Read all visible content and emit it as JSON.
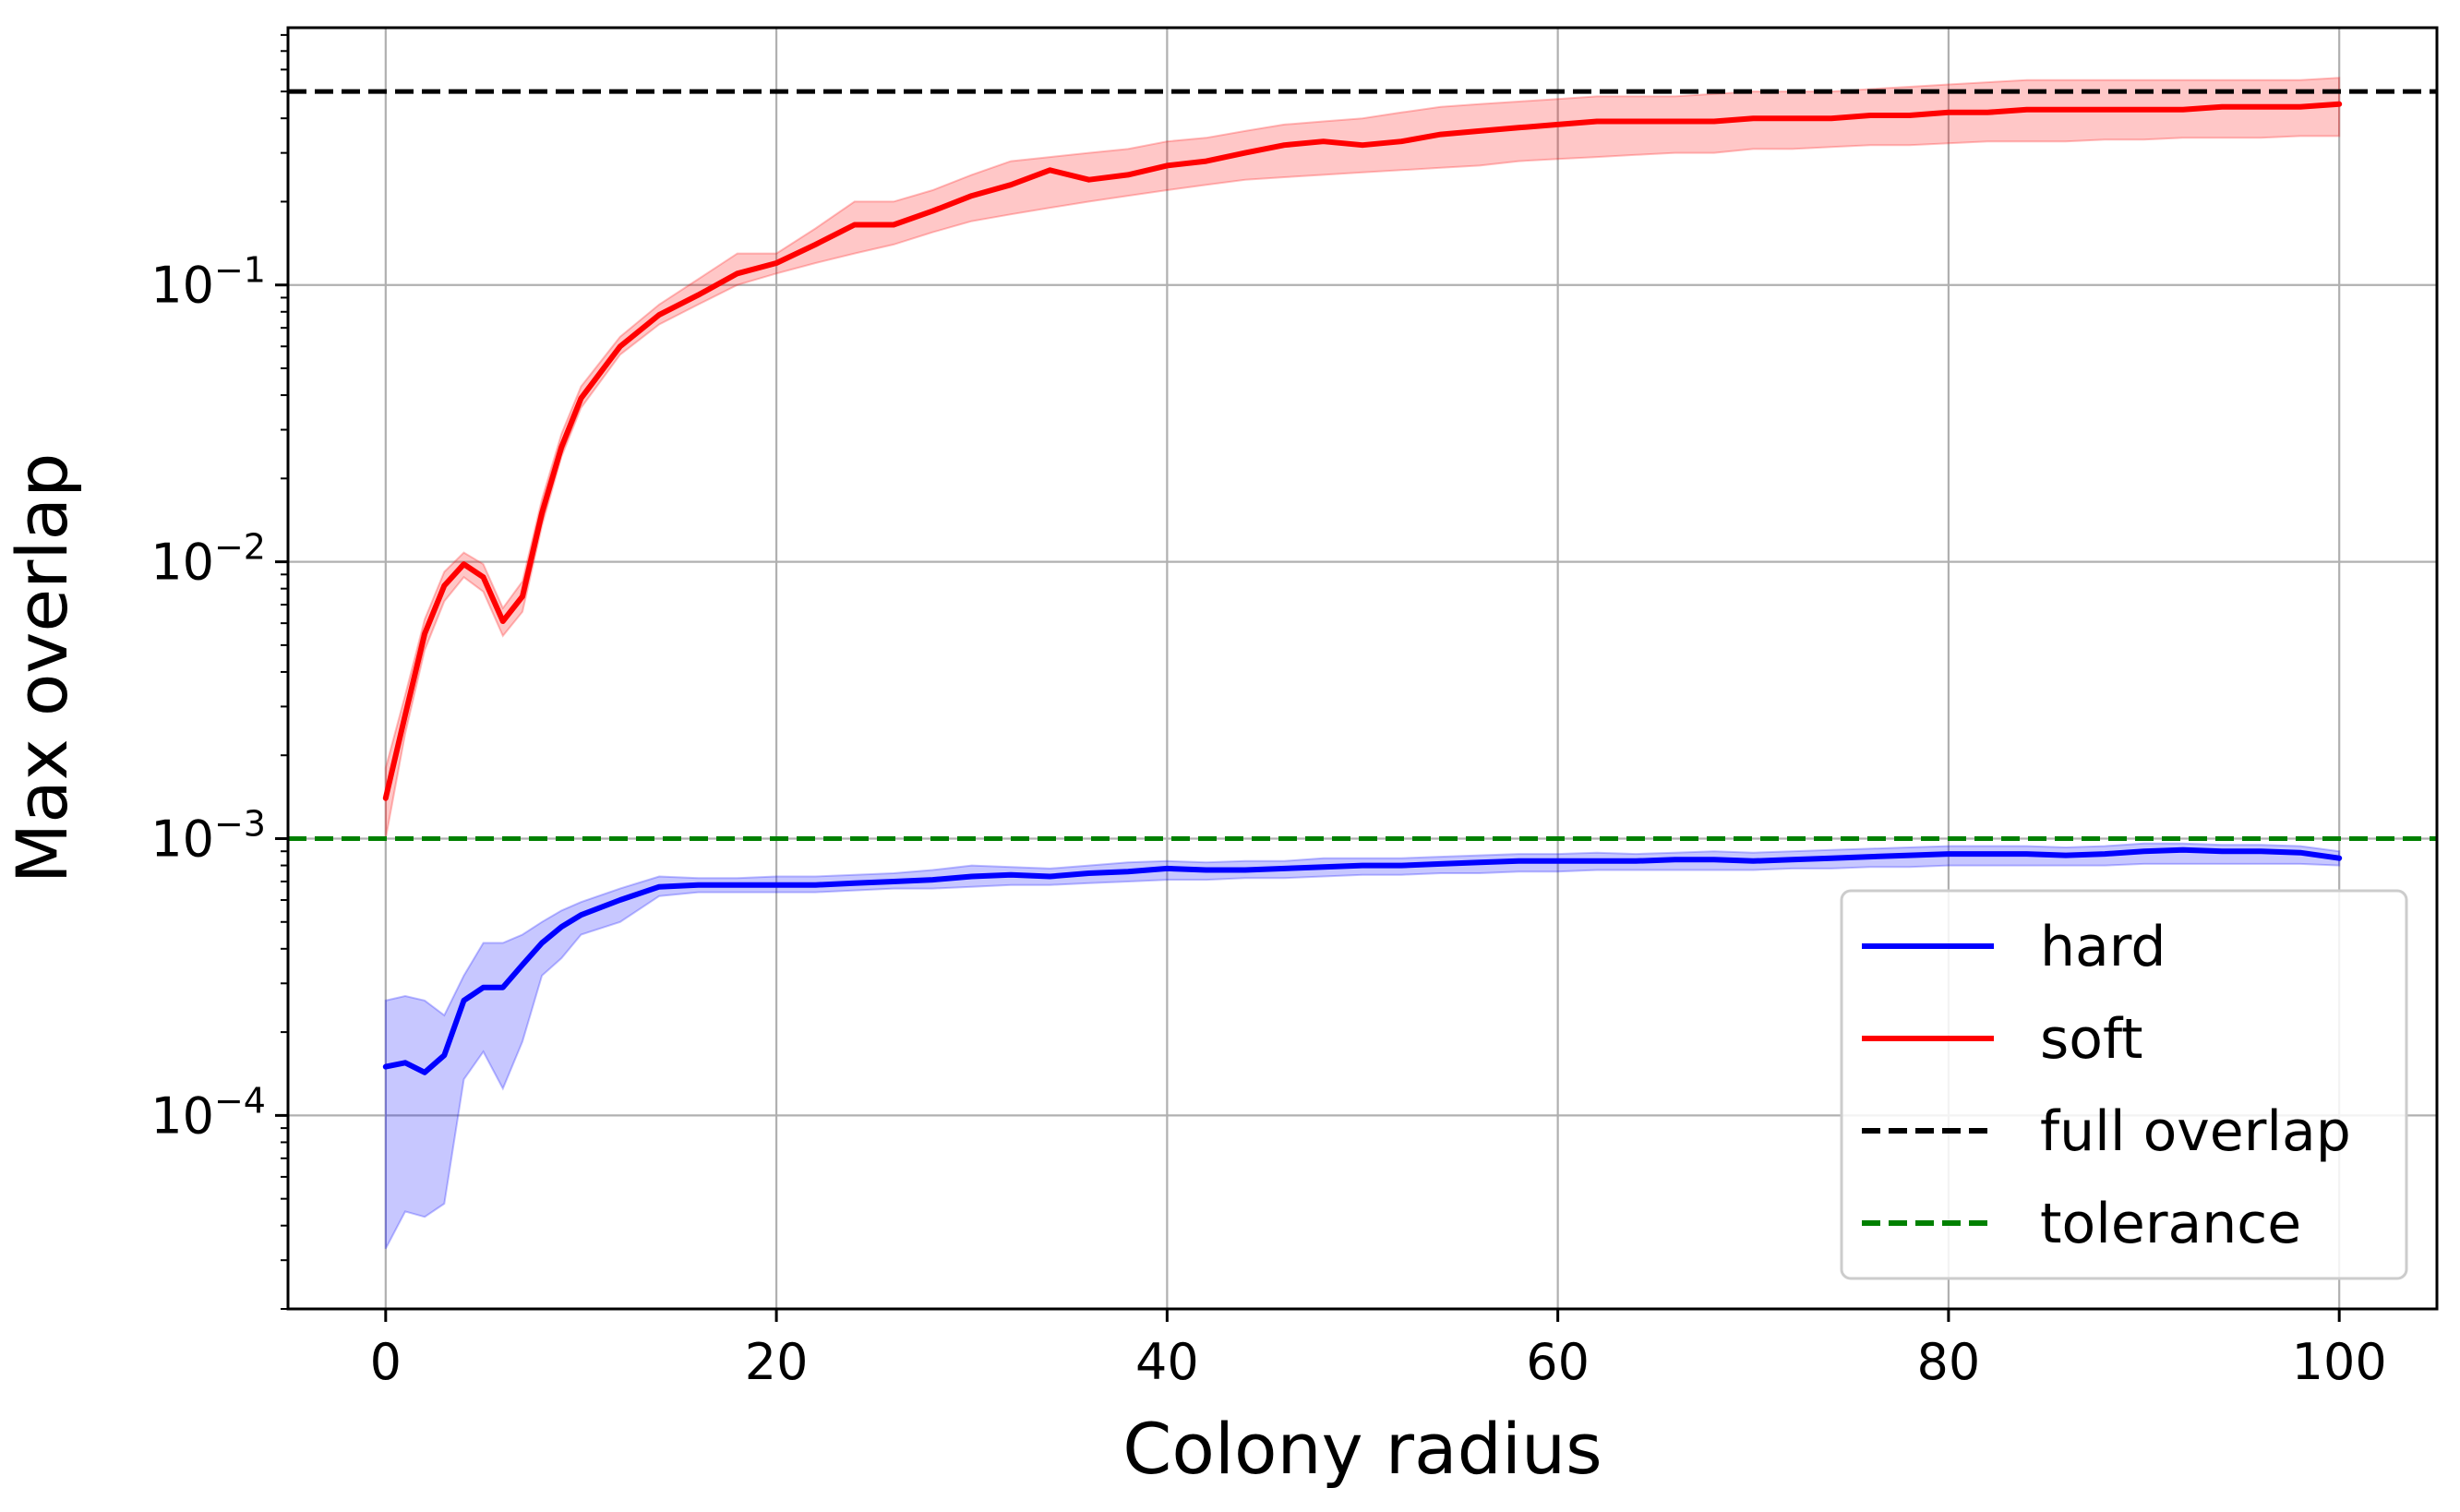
{
  "chart_data": {
    "type": "line",
    "xlabel": "Colony radius",
    "ylabel": "Max overlap",
    "xlim": [
      -5,
      105
    ],
    "ylim": [
      2e-05,
      0.85
    ],
    "yscale": "log",
    "grid": true,
    "legend_position": "bottom-right",
    "x_ticks": [
      0,
      20,
      40,
      60,
      80,
      100
    ],
    "x_tick_labels": [
      "0",
      "20",
      "40",
      "60",
      "80",
      "100"
    ],
    "y_ticks": [
      0.0001,
      0.001,
      0.01,
      0.1
    ],
    "y_tick_labels": [
      {
        "base": "10",
        "exp": "−4"
      },
      {
        "base": "10",
        "exp": "−3"
      },
      {
        "base": "10",
        "exp": "−2"
      },
      {
        "base": "10",
        "exp": "−1"
      }
    ],
    "reference_lines": [
      {
        "name": "full overlap",
        "y": 0.5,
        "color": "#000000",
        "style": "dashed"
      },
      {
        "name": "tolerance",
        "y": 0.001,
        "color": "#008000",
        "style": "dashed"
      }
    ],
    "series": [
      {
        "name": "hard",
        "color": "#0000ff",
        "x": [
          0,
          1,
          2,
          3,
          4,
          5,
          6,
          7,
          8,
          9,
          10,
          12,
          14,
          16,
          18,
          20,
          22,
          24,
          26,
          28,
          30,
          32,
          34,
          36,
          38,
          40,
          42,
          44,
          46,
          48,
          50,
          52,
          54,
          56,
          58,
          60,
          62,
          64,
          66,
          68,
          70,
          72,
          74,
          76,
          78,
          80,
          82,
          84,
          86,
          88,
          90,
          92,
          94,
          96,
          98,
          100
        ],
        "y": [
          0.00015,
          0.000155,
          0.000143,
          0.000165,
          0.00026,
          0.00029,
          0.00029,
          0.00035,
          0.00042,
          0.00048,
          0.00053,
          0.0006,
          0.00067,
          0.00068,
          0.00068,
          0.00068,
          0.00068,
          0.00069,
          0.0007,
          0.00071,
          0.00073,
          0.00074,
          0.00073,
          0.00075,
          0.00076,
          0.00078,
          0.00077,
          0.00077,
          0.00078,
          0.00079,
          0.0008,
          0.0008,
          0.00081,
          0.00082,
          0.00083,
          0.00083,
          0.00083,
          0.00083,
          0.00084,
          0.00084,
          0.00083,
          0.00084,
          0.00085,
          0.00086,
          0.00087,
          0.00088,
          0.00088,
          0.00088,
          0.00087,
          0.00088,
          0.0009,
          0.00091,
          0.0009,
          0.0009,
          0.00089,
          0.00085
        ],
        "lower": [
          3.3e-05,
          4.5e-05,
          4.3e-05,
          4.8e-05,
          0.000135,
          0.00017,
          0.000125,
          0.000185,
          0.00032,
          0.00037,
          0.00045,
          0.0005,
          0.00062,
          0.00064,
          0.00064,
          0.00064,
          0.00064,
          0.00065,
          0.00066,
          0.00066,
          0.00067,
          0.00068,
          0.00068,
          0.00069,
          0.0007,
          0.00071,
          0.00071,
          0.00072,
          0.00072,
          0.00073,
          0.00074,
          0.00074,
          0.00075,
          0.00075,
          0.00076,
          0.00076,
          0.00077,
          0.00077,
          0.00077,
          0.00077,
          0.00077,
          0.00078,
          0.00078,
          0.00079,
          0.00079,
          0.0008,
          0.0008,
          0.0008,
          0.0008,
          0.0008,
          0.00081,
          0.00081,
          0.00081,
          0.00081,
          0.00081,
          0.0008
        ],
        "upper": [
          0.00026,
          0.00027,
          0.00026,
          0.00023,
          0.00032,
          0.00042,
          0.00042,
          0.00045,
          0.0005,
          0.00055,
          0.00059,
          0.00066,
          0.00073,
          0.00072,
          0.00072,
          0.00073,
          0.00073,
          0.00074,
          0.00075,
          0.00077,
          0.0008,
          0.00079,
          0.00078,
          0.0008,
          0.00082,
          0.00083,
          0.00082,
          0.00083,
          0.00083,
          0.00085,
          0.00085,
          0.00085,
          0.00086,
          0.00087,
          0.00088,
          0.00088,
          0.00089,
          0.00088,
          0.00089,
          0.0009,
          0.00089,
          0.0009,
          0.00091,
          0.00092,
          0.00093,
          0.00094,
          0.00094,
          0.00094,
          0.00093,
          0.00094,
          0.00096,
          0.00096,
          0.00095,
          0.00095,
          0.00094,
          0.0009
        ]
      },
      {
        "name": "soft",
        "color": "#ff0000",
        "x": [
          0,
          1,
          2,
          3,
          4,
          5,
          6,
          7,
          8,
          9,
          10,
          12,
          14,
          16,
          18,
          20,
          22,
          24,
          26,
          28,
          30,
          32,
          34,
          36,
          38,
          40,
          42,
          44,
          46,
          48,
          50,
          52,
          54,
          56,
          58,
          60,
          62,
          64,
          66,
          68,
          70,
          72,
          74,
          76,
          78,
          80,
          82,
          84,
          86,
          88,
          90,
          92,
          94,
          96,
          98,
          100
        ],
        "y": [
          0.0014,
          0.0028,
          0.0055,
          0.0082,
          0.0098,
          0.0088,
          0.0061,
          0.0075,
          0.015,
          0.026,
          0.039,
          0.06,
          0.078,
          0.092,
          0.11,
          0.12,
          0.14,
          0.165,
          0.165,
          0.185,
          0.21,
          0.23,
          0.26,
          0.24,
          0.25,
          0.27,
          0.28,
          0.3,
          0.32,
          0.33,
          0.32,
          0.33,
          0.35,
          0.36,
          0.37,
          0.38,
          0.39,
          0.39,
          0.39,
          0.39,
          0.4,
          0.4,
          0.4,
          0.41,
          0.41,
          0.42,
          0.42,
          0.43,
          0.43,
          0.43,
          0.43,
          0.43,
          0.44,
          0.44,
          0.44,
          0.45
        ],
        "lower": [
          0.001,
          0.0024,
          0.0048,
          0.0072,
          0.0088,
          0.0078,
          0.0054,
          0.0066,
          0.0135,
          0.024,
          0.036,
          0.056,
          0.072,
          0.085,
          0.1,
          0.11,
          0.12,
          0.13,
          0.14,
          0.155,
          0.17,
          0.18,
          0.19,
          0.2,
          0.21,
          0.22,
          0.23,
          0.24,
          0.245,
          0.25,
          0.255,
          0.26,
          0.265,
          0.27,
          0.28,
          0.285,
          0.29,
          0.295,
          0.3,
          0.3,
          0.31,
          0.31,
          0.315,
          0.32,
          0.32,
          0.325,
          0.33,
          0.33,
          0.33,
          0.335,
          0.335,
          0.34,
          0.34,
          0.34,
          0.345,
          0.345
        ],
        "upper": [
          0.0018,
          0.0033,
          0.0062,
          0.0092,
          0.0108,
          0.0098,
          0.0068,
          0.0085,
          0.0168,
          0.029,
          0.043,
          0.065,
          0.085,
          0.105,
          0.13,
          0.13,
          0.16,
          0.2,
          0.2,
          0.22,
          0.25,
          0.28,
          0.29,
          0.3,
          0.31,
          0.33,
          0.34,
          0.36,
          0.38,
          0.39,
          0.4,
          0.42,
          0.44,
          0.45,
          0.46,
          0.47,
          0.48,
          0.48,
          0.48,
          0.49,
          0.5,
          0.5,
          0.5,
          0.51,
          0.52,
          0.53,
          0.54,
          0.55,
          0.55,
          0.55,
          0.55,
          0.55,
          0.55,
          0.55,
          0.55,
          0.56
        ]
      }
    ],
    "legend": [
      {
        "label": "hard",
        "color": "#0000ff",
        "style": "solid"
      },
      {
        "label": "soft",
        "color": "#ff0000",
        "style": "solid"
      },
      {
        "label": "full overlap",
        "color": "#000000",
        "style": "dashed"
      },
      {
        "label": "tolerance",
        "color": "#008000",
        "style": "dashed"
      }
    ]
  }
}
